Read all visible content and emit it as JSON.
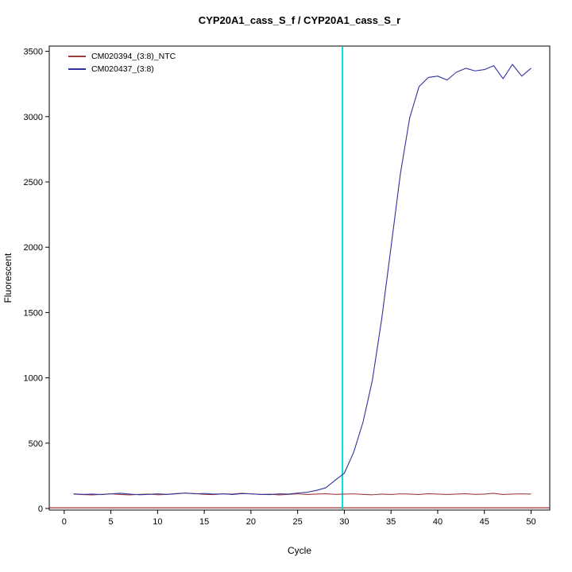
{
  "title": "CYP20A1_cass_S_f / CYP20A1_cass_S_r",
  "chart_data": {
    "type": "line",
    "title": "CYP20A1_cass_S_f / CYP20A1_cass_S_r",
    "xlabel": "Cycle",
    "ylabel": "Fluorescent",
    "xlim": [
      0,
      50
    ],
    "ylim": [
      0,
      3500
    ],
    "xticks": [
      0,
      5,
      10,
      15,
      20,
      25,
      30,
      35,
      40,
      45,
      50
    ],
    "yticks": [
      0,
      500,
      1000,
      1500,
      2000,
      2500,
      3000,
      3500
    ],
    "grid": false,
    "legend_position": "top-left",
    "x": [
      1,
      2,
      3,
      4,
      5,
      6,
      7,
      8,
      9,
      10,
      11,
      12,
      13,
      14,
      15,
      16,
      17,
      18,
      19,
      20,
      21,
      22,
      23,
      24,
      25,
      26,
      27,
      28,
      29,
      30,
      31,
      32,
      33,
      34,
      35,
      36,
      37,
      38,
      39,
      40,
      41,
      42,
      43,
      44,
      45,
      46,
      47,
      48,
      49,
      50
    ],
    "series": [
      {
        "name": "CM020394_(3:8)_NTC",
        "color": "#9e3d3d",
        "values": [
          110,
          106,
          104,
          108,
          112,
          107,
          104,
          108,
          110,
          105,
          108,
          112,
          118,
          114,
          108,
          106,
          112,
          110,
          116,
          112,
          107,
          109,
          104,
          108,
          112,
          107,
          110,
          113,
          108,
          110,
          112,
          108,
          105,
          110,
          107,
          112,
          110,
          107,
          113,
          110,
          107,
          110,
          113,
          108,
          110,
          116,
          107,
          110,
          112,
          110
        ]
      },
      {
        "name": "CM020437_(3:8)",
        "color": "#32329b",
        "values": [
          112,
          108,
          110,
          106,
          112,
          116,
          110,
          105,
          108,
          112,
          108,
          114,
          118,
          112,
          115,
          110,
          112,
          107,
          114,
          112,
          108,
          106,
          112,
          110,
          118,
          124,
          138,
          158,
          215,
          270,
          430,
          660,
          980,
          1450,
          2000,
          2560,
          2990,
          3230,
          3300,
          3310,
          3280,
          3340,
          3370,
          3350,
          3360,
          3390,
          3290,
          3400,
          3310,
          3370
        ]
      }
    ],
    "threshold_line": {
      "y": 5,
      "color": "#8b1a1a"
    },
    "ct_line": {
      "x": 29.8,
      "color": "#00dede"
    }
  }
}
